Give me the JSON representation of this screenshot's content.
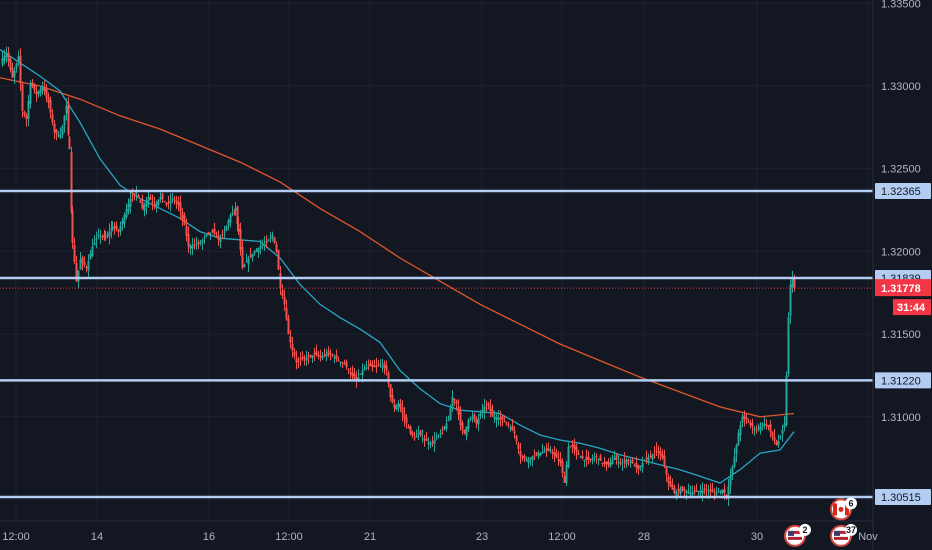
{
  "chart_data": {
    "type": "candlestick",
    "y_range": [
      1.3037,
      1.3352
    ],
    "x_range": [
      0,
      862
    ],
    "colors": {
      "background": "#131722",
      "grid": "#1e2230",
      "up": "#26a69a",
      "down": "#ef5350",
      "level_line": "#b3cdf2",
      "ma_fast": "#26a6c4",
      "ma_slow": "#e0572a",
      "current_price": "#f23645",
      "axis_text": "#b2b5be"
    },
    "y_ticks": [
      {
        "value": 1.335,
        "label": "1.33500"
      },
      {
        "value": 1.33,
        "label": "1.33000"
      },
      {
        "value": 1.325,
        "label": "1.32500"
      },
      {
        "value": 1.32,
        "label": "1.32000"
      },
      {
        "value": 1.315,
        "label": "1.31500"
      },
      {
        "value": 1.31,
        "label": "1.31000"
      }
    ],
    "x_ticks": [
      {
        "x": 16,
        "label": "12:00"
      },
      {
        "x": 97,
        "label": "14"
      },
      {
        "x": 209,
        "label": "16"
      },
      {
        "x": 289,
        "label": "12:00"
      },
      {
        "x": 370,
        "label": "21"
      },
      {
        "x": 482,
        "label": "23"
      },
      {
        "x": 562,
        "label": "12:00"
      },
      {
        "x": 644,
        "label": "28"
      },
      {
        "x": 757,
        "label": "30"
      },
      {
        "x": 868,
        "label": "Nov"
      }
    ],
    "levels": [
      {
        "value": 1.32365,
        "label": "1.32365"
      },
      {
        "value": 1.31839,
        "label": "1.31839"
      },
      {
        "value": 1.3122,
        "label": "1.31220"
      },
      {
        "value": 1.30515,
        "label": "1.30515"
      }
    ],
    "current_price": {
      "value": 1.31778,
      "label": "1.31778",
      "countdown": "31:44"
    },
    "price_path": [
      [
        0,
        1.3315
      ],
      [
        6,
        1.332
      ],
      [
        12,
        1.3305
      ],
      [
        18,
        1.3318
      ],
      [
        22,
        1.3285
      ],
      [
        26,
        1.328
      ],
      [
        30,
        1.3302
      ],
      [
        36,
        1.3295
      ],
      [
        42,
        1.33
      ],
      [
        48,
        1.329
      ],
      [
        54,
        1.3272
      ],
      [
        60,
        1.327
      ],
      [
        66,
        1.3288
      ],
      [
        69,
        1.3262
      ],
      [
        72,
        1.3205
      ],
      [
        76,
        1.3182
      ],
      [
        80,
        1.3195
      ],
      [
        86,
        1.319
      ],
      [
        92,
        1.3203
      ],
      [
        98,
        1.321
      ],
      [
        105,
        1.3208
      ],
      [
        112,
        1.3215
      ],
      [
        118,
        1.3212
      ],
      [
        124,
        1.3222
      ],
      [
        130,
        1.3232
      ],
      [
        136,
        1.3236
      ],
      [
        142,
        1.3226
      ],
      [
        148,
        1.3233
      ],
      [
        154,
        1.3228
      ],
      [
        160,
        1.3233
      ],
      [
        166,
        1.3228
      ],
      [
        172,
        1.3232
      ],
      [
        178,
        1.3228
      ],
      [
        184,
        1.3216
      ],
      [
        188,
        1.3203
      ],
      [
        194,
        1.3204
      ],
      [
        200,
        1.3205
      ],
      [
        206,
        1.321
      ],
      [
        212,
        1.3212
      ],
      [
        218,
        1.3207
      ],
      [
        224,
        1.3212
      ],
      [
        230,
        1.3222
      ],
      [
        235,
        1.3226
      ],
      [
        238,
        1.3212
      ],
      [
        242,
        1.319
      ],
      [
        248,
        1.3196
      ],
      [
        254,
        1.32
      ],
      [
        260,
        1.3203
      ],
      [
        266,
        1.3205
      ],
      [
        272,
        1.321
      ],
      [
        276,
        1.32
      ],
      [
        280,
        1.3178
      ],
      [
        284,
        1.3168
      ],
      [
        288,
        1.315
      ],
      [
        292,
        1.314
      ],
      [
        296,
        1.3133
      ],
      [
        302,
        1.3135
      ],
      [
        308,
        1.3136
      ],
      [
        314,
        1.3138
      ],
      [
        320,
        1.3136
      ],
      [
        326,
        1.3138
      ],
      [
        332,
        1.3137
      ],
      [
        338,
        1.3134
      ],
      [
        344,
        1.3132
      ],
      [
        350,
        1.3126
      ],
      [
        356,
        1.3122
      ],
      [
        362,
        1.3128
      ],
      [
        368,
        1.3131
      ],
      [
        374,
        1.313
      ],
      [
        380,
        1.3132
      ],
      [
        386,
        1.3128
      ],
      [
        390,
        1.3112
      ],
      [
        394,
        1.3105
      ],
      [
        398,
        1.3108
      ],
      [
        402,
        1.3102
      ],
      [
        406,
        1.3096
      ],
      [
        410,
        1.309
      ],
      [
        414,
        1.3087
      ],
      [
        418,
        1.309
      ],
      [
        424,
        1.3086
      ],
      [
        430,
        1.3084
      ],
      [
        436,
        1.3087
      ],
      [
        442,
        1.3092
      ],
      [
        448,
        1.3098
      ],
      [
        452,
        1.3112
      ],
      [
        456,
        1.3108
      ],
      [
        460,
        1.3095
      ],
      [
        464,
        1.309
      ],
      [
        468,
        1.3098
      ],
      [
        472,
        1.31
      ],
      [
        476,
        1.3096
      ],
      [
        480,
        1.3102
      ],
      [
        484,
        1.3106
      ],
      [
        488,
        1.3107
      ],
      [
        492,
        1.31
      ],
      [
        496,
        1.31
      ],
      [
        502,
        1.3098
      ],
      [
        508,
        1.3095
      ],
      [
        514,
        1.309
      ],
      [
        520,
        1.3076
      ],
      [
        526,
        1.3074
      ],
      [
        532,
        1.3076
      ],
      [
        538,
        1.3078
      ],
      [
        544,
        1.3079
      ],
      [
        550,
        1.308
      ],
      [
        556,
        1.3075
      ],
      [
        560,
        1.3072
      ],
      [
        564,
        1.306
      ],
      [
        568,
        1.3082
      ],
      [
        572,
        1.3082
      ],
      [
        578,
        1.3077
      ],
      [
        584,
        1.3074
      ],
      [
        590,
        1.3074
      ],
      [
        596,
        1.3076
      ],
      [
        602,
        1.3072
      ],
      [
        608,
        1.3071
      ],
      [
        614,
        1.3075
      ],
      [
        620,
        1.3072
      ],
      [
        626,
        1.3074
      ],
      [
        632,
        1.3072
      ],
      [
        638,
        1.3068
      ],
      [
        644,
        1.3074
      ],
      [
        650,
        1.3076
      ],
      [
        656,
        1.308
      ],
      [
        662,
        1.3075
      ],
      [
        668,
        1.306
      ],
      [
        674,
        1.3054
      ],
      [
        680,
        1.3056
      ],
      [
        686,
        1.3055
      ],
      [
        692,
        1.3054
      ],
      [
        698,
        1.3055
      ],
      [
        704,
        1.3056
      ],
      [
        710,
        1.3055
      ],
      [
        716,
        1.3054
      ],
      [
        722,
        1.3056
      ],
      [
        726,
        1.3052
      ],
      [
        730,
        1.3064
      ],
      [
        734,
        1.3076
      ],
      [
        738,
        1.309
      ],
      [
        742,
        1.31
      ],
      [
        746,
        1.3098
      ],
      [
        750,
        1.3095
      ],
      [
        756,
        1.3092
      ],
      [
        762,
        1.3096
      ],
      [
        768,
        1.3094
      ],
      [
        772,
        1.3088
      ],
      [
        776,
        1.3083
      ],
      [
        780,
        1.3088
      ],
      [
        784,
        1.3096
      ],
      [
        786,
        1.3125
      ],
      [
        788,
        1.316
      ],
      [
        790,
        1.318
      ],
      [
        792,
        1.3184
      ],
      [
        794,
        1.31778
      ]
    ],
    "ma_fast": [
      [
        0,
        1.3322
      ],
      [
        20,
        1.3314
      ],
      [
        40,
        1.3306
      ],
      [
        60,
        1.3297
      ],
      [
        80,
        1.3278
      ],
      [
        100,
        1.3256
      ],
      [
        120,
        1.324
      ],
      [
        140,
        1.3232
      ],
      [
        160,
        1.3226
      ],
      [
        180,
        1.322
      ],
      [
        200,
        1.3212
      ],
      [
        220,
        1.3208
      ],
      [
        240,
        1.3207
      ],
      [
        260,
        1.3206
      ],
      [
        280,
        1.3196
      ],
      [
        300,
        1.318
      ],
      [
        320,
        1.3168
      ],
      [
        340,
        1.316
      ],
      [
        360,
        1.3153
      ],
      [
        380,
        1.3145
      ],
      [
        400,
        1.3128
      ],
      [
        420,
        1.3117
      ],
      [
        440,
        1.3108
      ],
      [
        460,
        1.3104
      ],
      [
        480,
        1.3103
      ],
      [
        500,
        1.3102
      ],
      [
        520,
        1.3095
      ],
      [
        540,
        1.3089
      ],
      [
        560,
        1.3086
      ],
      [
        580,
        1.3084
      ],
      [
        600,
        1.3081
      ],
      [
        620,
        1.3077
      ],
      [
        640,
        1.3074
      ],
      [
        660,
        1.3071
      ],
      [
        680,
        1.3068
      ],
      [
        700,
        1.3064
      ],
      [
        720,
        1.306
      ],
      [
        740,
        1.3068
      ],
      [
        760,
        1.3078
      ],
      [
        780,
        1.308
      ],
      [
        794,
        1.3091
      ]
    ],
    "ma_slow": [
      [
        0,
        1.3305
      ],
      [
        40,
        1.33
      ],
      [
        80,
        1.3292
      ],
      [
        120,
        1.3282
      ],
      [
        160,
        1.3274
      ],
      [
        200,
        1.3264
      ],
      [
        240,
        1.3254
      ],
      [
        280,
        1.3242
      ],
      [
        320,
        1.3226
      ],
      [
        360,
        1.3212
      ],
      [
        400,
        1.3196
      ],
      [
        440,
        1.3182
      ],
      [
        480,
        1.3168
      ],
      [
        520,
        1.3156
      ],
      [
        560,
        1.3144
      ],
      [
        600,
        1.3134
      ],
      [
        640,
        1.3124
      ],
      [
        680,
        1.3115
      ],
      [
        720,
        1.3106
      ],
      [
        760,
        1.31
      ],
      [
        794,
        1.3102
      ]
    ],
    "badges": [
      {
        "name": "event-badge-2",
        "x": 795,
        "value_y": 1.3028,
        "count": "2",
        "flag": "us"
      },
      {
        "name": "event-badge-6",
        "x": 841,
        "value_y": 1.3044,
        "count": "6",
        "flag": "ca"
      },
      {
        "name": "event-badge-37",
        "x": 841,
        "value_y": 1.3028,
        "count": "37",
        "flag": "us"
      }
    ]
  }
}
